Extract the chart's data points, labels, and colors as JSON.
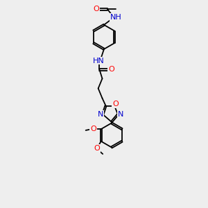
{
  "background_color": "#eeeeee",
  "atom_colors": {
    "O": "#ff0000",
    "N": "#0000cd",
    "C": "#000000"
  },
  "figsize": [
    3.0,
    3.0
  ],
  "dpi": 100,
  "bond_lw": 1.3,
  "font_size": 7.5
}
